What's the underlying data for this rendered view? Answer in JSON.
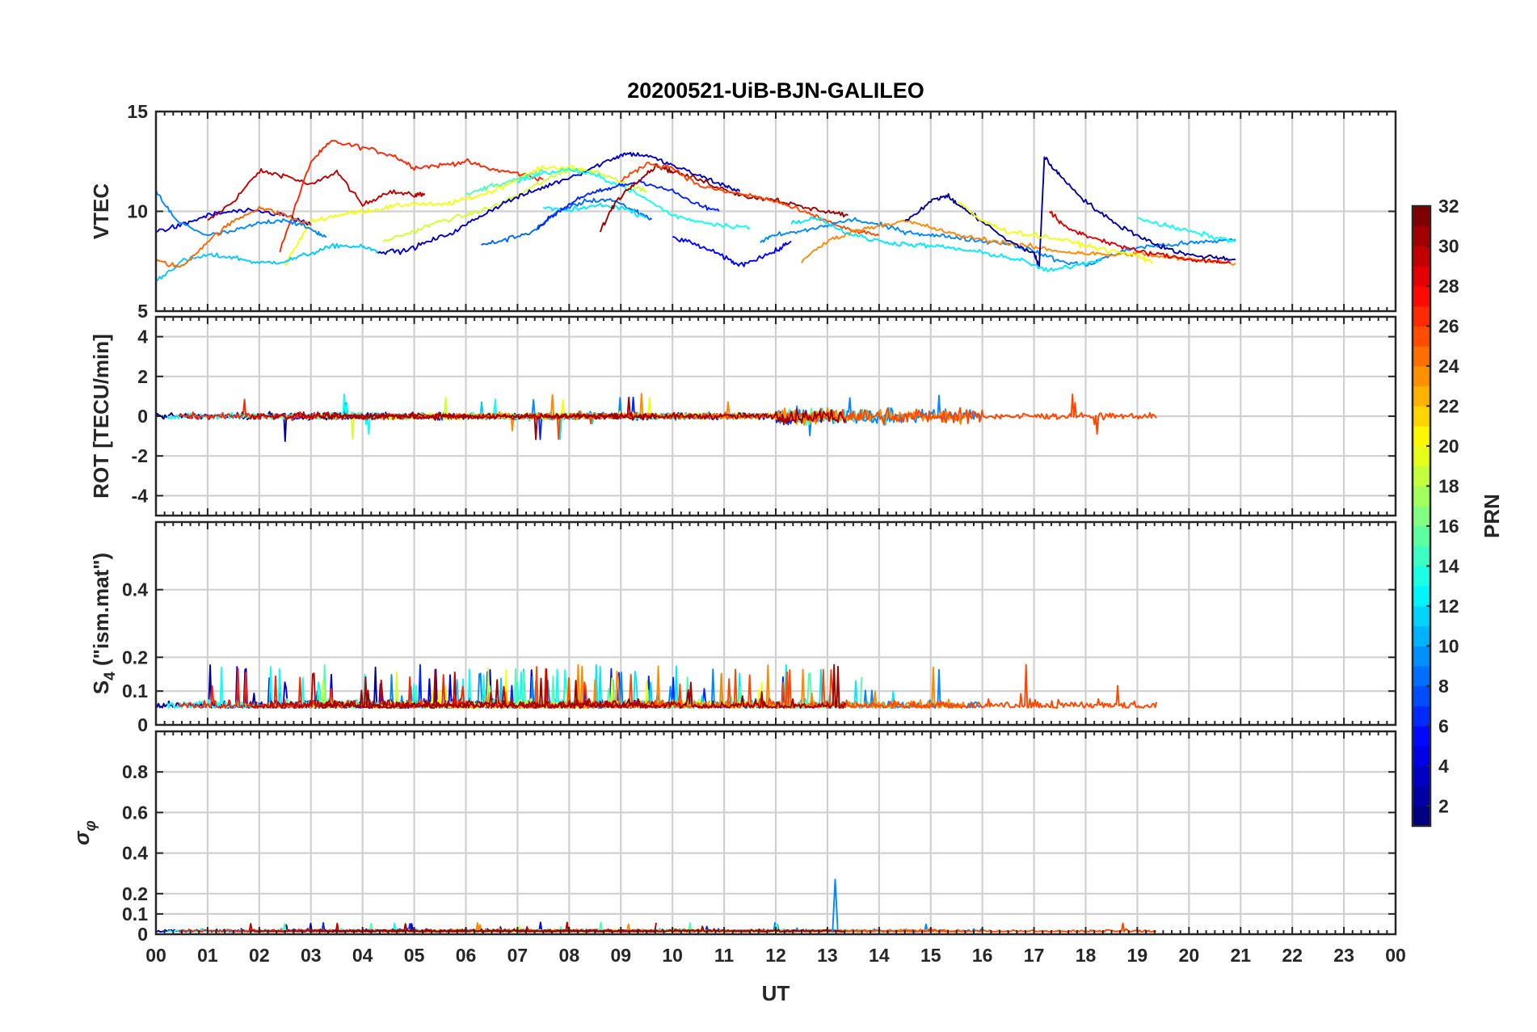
{
  "chart_data": {
    "type": "line",
    "title": "20200521-UiB-BJN-GALILEO",
    "xlabel": "UT",
    "x_ticks": [
      "00",
      "01",
      "02",
      "03",
      "04",
      "05",
      "06",
      "07",
      "08",
      "09",
      "10",
      "11",
      "12",
      "13",
      "14",
      "15",
      "16",
      "17",
      "18",
      "19",
      "20",
      "21",
      "22",
      "23",
      "00"
    ],
    "xlim": [
      0,
      24
    ],
    "grid": true,
    "panels": [
      {
        "id": "vtec",
        "ylabel": "VTEC",
        "ylim": [
          5,
          15
        ],
        "yticks": [
          5,
          10,
          15
        ],
        "series": [
          {
            "prn": 30,
            "x": [
              1.0,
              1.5,
              2.0,
              2.5,
              3.0,
              3.5,
              4.0,
              4.5,
              5.0,
              5.2
            ],
            "y": [
              9.5,
              10.5,
              12.0,
              11.8,
              11.3,
              12.0,
              10.3,
              11.0,
              10.8,
              10.9
            ]
          },
          {
            "prn": 27,
            "x": [
              2.4,
              3.0,
              3.4,
              4.0,
              4.6,
              5.0,
              5.5,
              6.0,
              6.5,
              7.0,
              7.5
            ],
            "y": [
              8.0,
              12.5,
              13.5,
              13.2,
              12.8,
              12.2,
              12.3,
              12.5,
              12.1,
              11.9,
              11.6
            ]
          },
          {
            "prn": 20,
            "x": [
              2.5,
              3.0,
              3.5,
              4.0,
              4.5,
              5.0,
              5.5,
              6.0,
              6.5,
              7.0,
              7.5,
              8.0,
              8.5
            ],
            "y": [
              7.3,
              9.5,
              9.8,
              10.0,
              10.2,
              10.4,
              10.3,
              10.6,
              11.0,
              11.6,
              12.2,
              12.2,
              12.0
            ]
          },
          {
            "prn": 11,
            "x": [
              0.0,
              0.5,
              1.0,
              1.5,
              2.0,
              2.5,
              3.0,
              3.5,
              4.0,
              4.3
            ],
            "y": [
              6.5,
              7.5,
              7.8,
              7.7,
              7.4,
              7.5,
              7.9,
              8.3,
              8.2,
              8.0
            ]
          },
          {
            "prn": 4,
            "x": [
              0.0,
              0.5,
              1.0,
              1.5,
              2.0,
              2.5,
              3.0
            ],
            "y": [
              9.0,
              9.3,
              9.8,
              10.0,
              10.0,
              9.8,
              9.3
            ]
          },
          {
            "prn": 9,
            "x": [
              0.0,
              0.4,
              1.0,
              1.5,
              2.0,
              2.5,
              3.0,
              3.3
            ],
            "y": [
              11.0,
              9.5,
              8.8,
              9.0,
              9.4,
              9.6,
              9.1,
              8.7
            ]
          },
          {
            "prn": 25,
            "x": [
              0.0,
              0.5,
              1.0,
              1.5,
              2.0,
              2.5,
              3.0
            ],
            "y": [
              7.5,
              7.2,
              8.5,
              9.5,
              10.2,
              9.8,
              9.3
            ]
          },
          {
            "prn": 19,
            "x": [
              4.4,
              5.0,
              5.5,
              6.0,
              6.5,
              7.0,
              7.5,
              8.0,
              8.5,
              9.0,
              9.5
            ],
            "y": [
              8.5,
              9.0,
              9.5,
              9.8,
              10.2,
              10.8,
              11.5,
              12.1,
              12.0,
              11.5,
              11.0
            ]
          },
          {
            "prn": 3,
            "x": [
              4.3,
              4.8,
              5.3,
              5.8,
              6.3,
              6.8,
              7.3,
              7.8,
              8.3,
              8.8,
              9.1,
              9.5,
              10.0,
              10.5,
              11.0,
              11.3
            ],
            "y": [
              8.0,
              8.0,
              8.5,
              9.0,
              9.8,
              10.5,
              11.0,
              11.5,
              12.0,
              12.6,
              12.9,
              12.8,
              12.3,
              11.8,
              11.3,
              11.0
            ]
          },
          {
            "prn": 8,
            "x": [
              6.3,
              6.8,
              7.3,
              7.8,
              8.3,
              8.8,
              9.3,
              9.6
            ],
            "y": [
              8.3,
              8.6,
              9.0,
              10.0,
              10.5,
              10.6,
              10.0,
              9.6
            ]
          },
          {
            "prn": 13,
            "x": [
              7.0,
              7.5,
              8.0,
              8.5,
              9.0,
              9.5,
              10.0,
              10.5,
              11.0,
              11.5
            ],
            "y": [
              11.5,
              11.9,
              12.1,
              11.8,
              11.3,
              10.6,
              9.8,
              9.5,
              9.3,
              9.2
            ]
          },
          {
            "prn": 15,
            "x": [
              6.0,
              6.5,
              7.0,
              7.5
            ],
            "y": [
              10.8,
              11.3,
              11.6,
              12.0
            ]
          },
          {
            "prn": 12,
            "x": [
              7.5,
              8.0,
              8.5,
              9.0,
              9.5
            ],
            "y": [
              10.2,
              10.0,
              10.3,
              10.2,
              9.7
            ]
          },
          {
            "prn": 6,
            "x": [
              7.4,
              7.8,
              8.2,
              8.6,
              9.0,
              9.4,
              10.0,
              10.5,
              10.9
            ],
            "y": [
              9.2,
              10.0,
              10.7,
              11.0,
              11.3,
              11.5,
              11.0,
              10.3,
              10.0
            ]
          },
          {
            "prn": 31,
            "x": [
              8.6,
              8.9,
              9.3,
              9.7,
              10.0,
              10.5,
              11.0,
              11.5,
              12.0,
              12.5,
              13.0,
              13.4
            ],
            "y": [
              9.0,
              10.5,
              11.5,
              12.3,
              12.0,
              11.6,
              11.1,
              10.7,
              10.6,
              10.2,
              10.0,
              9.8
            ]
          },
          {
            "prn": 26,
            "x": [
              9.0,
              9.5,
              10.0,
              10.5,
              11.0,
              11.5,
              12.0,
              12.5,
              13.0,
              13.5,
              14.0
            ],
            "y": [
              11.5,
              12.4,
              12.2,
              11.3,
              11.0,
              10.8,
              10.5,
              10.0,
              9.5,
              9.0,
              8.8
            ]
          },
          {
            "prn": 5,
            "x": [
              10.0,
              10.5,
              11.0,
              11.3,
              11.6,
              12.0,
              12.3
            ],
            "y": [
              8.7,
              8.3,
              7.7,
              7.3,
              7.6,
              8.0,
              8.5
            ]
          },
          {
            "prn": 9,
            "x": [
              11.7,
              12.0,
              12.5,
              13.0,
              13.5,
              14.0,
              14.5,
              15.0,
              15.5,
              16.0,
              16.5,
              17.0,
              17.5,
              18.0,
              18.5,
              19.0,
              19.5,
              20.0,
              20.5,
              20.9
            ],
            "y": [
              8.5,
              8.8,
              9.0,
              9.3,
              9.6,
              9.3,
              9.0,
              8.8,
              8.7,
              8.5,
              8.4,
              8.0,
              7.5,
              7.3,
              7.8,
              8.2,
              8.3,
              8.4,
              8.5,
              8.6
            ]
          },
          {
            "prn": 24,
            "x": [
              12.5,
              13.0,
              13.5,
              14.0,
              14.5,
              15.0,
              15.5,
              16.0,
              16.5,
              17.0,
              17.5,
              18.0,
              18.5,
              19.0,
              19.5,
              20.0,
              20.5,
              20.9
            ],
            "y": [
              7.5,
              8.5,
              9.0,
              9.3,
              9.5,
              9.2,
              8.8,
              8.6,
              8.4,
              8.2,
              8.0,
              7.9,
              7.8,
              7.9,
              7.7,
              7.6,
              7.5,
              7.4
            ]
          },
          {
            "prn": 12,
            "x": [
              12.3,
              12.8,
              13.3,
              13.8,
              14.3,
              14.8,
              15.3,
              15.8,
              16.3,
              16.8,
              17.3,
              17.8,
              18.3
            ],
            "y": [
              9.4,
              9.7,
              9.0,
              8.6,
              8.4,
              8.3,
              8.2,
              8.0,
              7.8,
              7.5,
              7.0,
              7.3,
              7.6
            ]
          },
          {
            "prn": 2,
            "x": [
              14.5,
              15.0,
              15.3,
              15.6,
              16.0,
              16.5,
              17.0,
              17.1,
              17.2,
              17.5,
              18.0,
              18.5,
              19.0,
              19.5,
              20.0,
              20.5,
              20.9
            ],
            "y": [
              9.5,
              10.5,
              10.8,
              10.2,
              9.5,
              8.5,
              7.9,
              7.2,
              12.7,
              11.8,
              10.5,
              9.5,
              8.8,
              8.2,
              7.8,
              7.7,
              7.6
            ]
          },
          {
            "prn": 29,
            "x": [
              17.3,
              17.6,
              18.0,
              18.5,
              19.0,
              19.5,
              20.0,
              20.5,
              20.8
            ],
            "y": [
              10.0,
              9.2,
              8.8,
              8.4,
              8.0,
              7.8,
              7.6,
              7.5,
              7.4
            ]
          },
          {
            "prn": 20,
            "x": [
              15.5,
              16.0,
              16.5,
              17.0,
              17.5,
              18.0,
              18.5,
              19.0,
              19.3
            ],
            "y": [
              10.5,
              9.5,
              9.0,
              8.8,
              8.6,
              8.3,
              8.0,
              7.8,
              7.4
            ]
          },
          {
            "prn": 13,
            "x": [
              19.0,
              19.5,
              20.0,
              20.5,
              20.9
            ],
            "y": [
              9.7,
              9.3,
              9.0,
              8.7,
              8.5
            ]
          }
        ]
      },
      {
        "id": "rot",
        "ylabel": "ROT [TECU/min]",
        "ylim": [
          -5,
          5
        ],
        "yticks": [
          -4,
          -2,
          0,
          2,
          4
        ]
      },
      {
        "id": "s4",
        "ylabel": "S4 (\"ism.mat\")",
        "ylim": [
          0,
          0.6
        ],
        "yticks": [
          0,
          0.1,
          0.2,
          0.4
        ]
      },
      {
        "id": "sigma_phi",
        "ylabel": "σφ",
        "ylim": [
          0,
          1
        ],
        "yticks": [
          0,
          0.1,
          0.2,
          0.4,
          0.6,
          0.8
        ]
      }
    ],
    "colorbar": {
      "label": "PRN",
      "range": [
        1,
        32
      ],
      "ticks": [
        2,
        4,
        6,
        8,
        10,
        12,
        14,
        16,
        18,
        20,
        22,
        24,
        26,
        28,
        30,
        32
      ],
      "colormap": "jet"
    }
  }
}
